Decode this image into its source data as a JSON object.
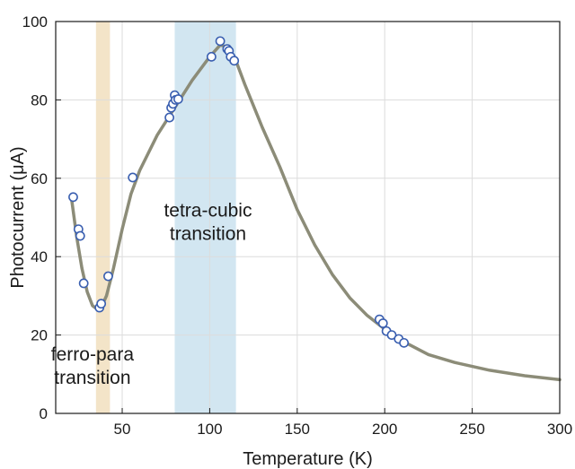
{
  "chart_data": {
    "type": "scatter",
    "xlabel": "Temperature (K)",
    "ylabel": "Photocurrent (μA)",
    "xlim": [
      12,
      300
    ],
    "ylim": [
      0,
      100
    ],
    "xticks": [
      50,
      100,
      150,
      200,
      250,
      300
    ],
    "yticks": [
      0,
      20,
      40,
      60,
      80,
      100
    ],
    "grid": true,
    "colors": {
      "marker_edge": "#3a5fb0",
      "marker_fill": "#ffffff",
      "fit_line": "#8c8c78",
      "ferro_band": "#f3e4c8",
      "tetra_band": "#d2e6f1",
      "grid": "#dcdcdc"
    },
    "bands": [
      {
        "x": [
          35,
          43
        ],
        "annotation": [
          "ferro-para",
          "transition"
        ]
      },
      {
        "x": [
          80,
          115
        ],
        "annotation": [
          "tetra-cubic",
          "transition"
        ]
      }
    ],
    "series": [
      {
        "kind": "markers",
        "points": [
          [
            22,
            55.2
          ],
          [
            25,
            47
          ],
          [
            26,
            45.3
          ],
          [
            28,
            33.2
          ],
          [
            37,
            27
          ],
          [
            38,
            28
          ],
          [
            42,
            35
          ],
          [
            56,
            60.2
          ],
          [
            77,
            75.5
          ],
          [
            78,
            78
          ],
          [
            79,
            79
          ],
          [
            80,
            81.2
          ],
          [
            80.5,
            80
          ],
          [
            82,
            80.2
          ],
          [
            101,
            91
          ],
          [
            106,
            95
          ],
          [
            110,
            93
          ],
          [
            111,
            92.5
          ],
          [
            112,
            91
          ],
          [
            114,
            90
          ],
          [
            197,
            24
          ],
          [
            199,
            23
          ],
          [
            201,
            21
          ],
          [
            204,
            20
          ],
          [
            208,
            19
          ],
          [
            211,
            18
          ]
        ]
      },
      {
        "kind": "line",
        "points": [
          [
            21,
            55
          ],
          [
            24,
            45
          ],
          [
            27,
            37
          ],
          [
            30,
            31
          ],
          [
            33,
            27.5
          ],
          [
            36,
            26.5
          ],
          [
            38,
            27
          ],
          [
            41,
            30
          ],
          [
            45,
            37
          ],
          [
            50,
            47
          ],
          [
            55,
            56
          ],
          [
            60,
            62
          ],
          [
            70,
            71
          ],
          [
            80,
            78
          ],
          [
            90,
            85
          ],
          [
            100,
            91
          ],
          [
            106,
            94
          ],
          [
            110,
            93.5
          ],
          [
            115,
            90
          ],
          [
            120,
            84
          ],
          [
            130,
            73
          ],
          [
            140,
            63
          ],
          [
            150,
            52
          ],
          [
            160,
            43
          ],
          [
            170,
            35.5
          ],
          [
            180,
            29.5
          ],
          [
            190,
            25
          ],
          [
            200,
            21.5
          ],
          [
            210,
            18.5
          ],
          [
            225,
            15
          ],
          [
            240,
            13
          ],
          [
            260,
            11
          ],
          [
            280,
            9.6
          ],
          [
            300,
            8.6
          ]
        ]
      }
    ]
  }
}
